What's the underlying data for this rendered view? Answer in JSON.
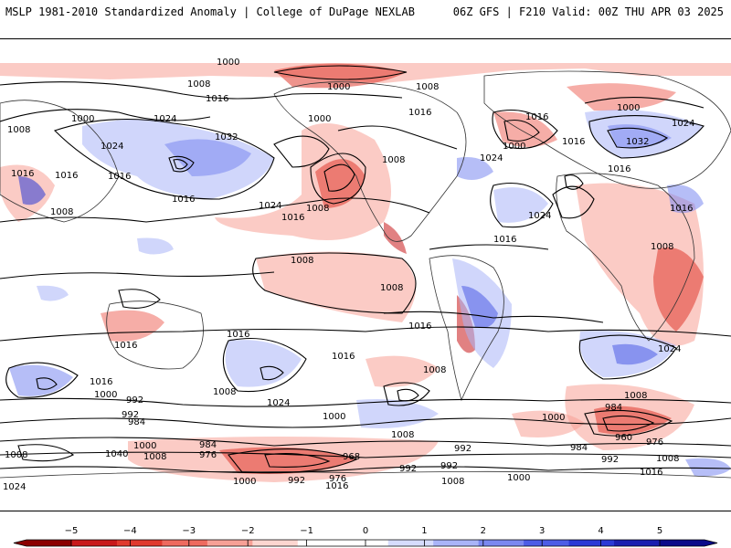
{
  "header": {
    "left_title": "MSLP 1981-2010 Standardized Anomaly | College of DuPage NEXLAB",
    "right_title": "06Z GFS | F210 Valid: 00Z THU APR 03 2025"
  },
  "map": {
    "projection": "equirectangular global",
    "negative_color": "#e03a2e",
    "positive_color": "#3a4fe0",
    "contour_color": "#000000",
    "isobar_labels": [
      "1000",
      "1000",
      "1008",
      "1016",
      "1008",
      "1000",
      "1024",
      "1016",
      "1000",
      "1016",
      "1008",
      "1024",
      "1024",
      "1032",
      "1016",
      "1016",
      "1016",
      "1032",
      "1024",
      "1016",
      "1008",
      "1008",
      "1000",
      "1008",
      "1016",
      "1024",
      "1016",
      "1032",
      "1024",
      "1000",
      "1016",
      "1024",
      "1016",
      "1008",
      "1008",
      "1016",
      "1008",
      "1008",
      "1024",
      "1016",
      "1008",
      "1016",
      "1016",
      "1024",
      "1008",
      "1016",
      "1016",
      "1000",
      "992",
      "1000",
      "1008",
      "1008",
      "984",
      "960",
      "976",
      "992",
      "984",
      "1008",
      "1000",
      "992",
      "984",
      "1008",
      "1040",
      "1000",
      "1008",
      "984",
      "976",
      "968",
      "992",
      "992",
      "1008",
      "992",
      "1000",
      "1016",
      "1024",
      "1000",
      "992",
      "976",
      "1016"
    ]
  },
  "colorbar": {
    "ticks": [
      "−5",
      "−4",
      "−3",
      "−2",
      "−1",
      "0",
      "1",
      "2",
      "3",
      "4",
      "5"
    ],
    "colors": [
      "#8b0000",
      "#c8191b",
      "#e03a2e",
      "#ee6a5f",
      "#f7a096",
      "#fdd6d0",
      "#ffffff",
      "#ffffff",
      "#d6dcfd",
      "#a9b4f8",
      "#7a88f0",
      "#4c5de6",
      "#2a3ad6",
      "#1a1fb0",
      "#0b0b8a"
    ]
  }
}
